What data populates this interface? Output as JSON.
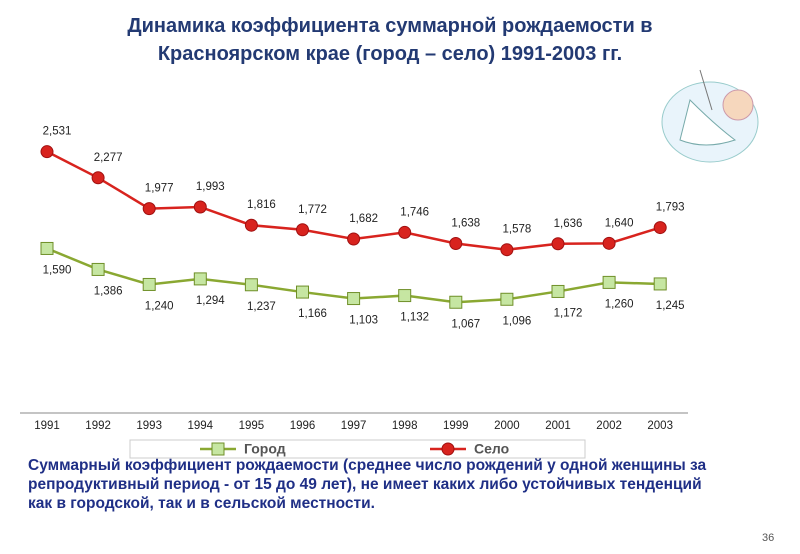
{
  "chart_data": {
    "type": "line",
    "title": "Динамика коэффициента суммарной рождаемости в Красноярском крае (город – село) 1991-2003 гг.",
    "categories": [
      "1991",
      "1992",
      "1993",
      "1994",
      "1995",
      "1996",
      "1997",
      "1998",
      "1999",
      "2000",
      "2001",
      "2002",
      "2003"
    ],
    "series": [
      {
        "name": "Город",
        "color": "#8aa832",
        "marker": "square",
        "values": [
          1.59,
          1.386,
          1.24,
          1.294,
          1.237,
          1.166,
          1.103,
          1.132,
          1.067,
          1.096,
          1.172,
          1.26,
          1.245
        ],
        "value_labels": [
          "1,590",
          "1,386",
          "1,240",
          "1,294",
          "1,237",
          "1,166",
          "1,103",
          "1,132",
          "1,067",
          "1,096",
          "1,172",
          "1,260",
          "1,245"
        ]
      },
      {
        "name": "Село",
        "color": "#d8231e",
        "marker": "circle",
        "values": [
          2.531,
          2.277,
          1.977,
          1.993,
          1.816,
          1.772,
          1.682,
          1.746,
          1.638,
          1.578,
          1.636,
          1.64,
          1.793
        ],
        "value_labels": [
          "2,531",
          "2,277",
          "1,977",
          "1,993",
          "1,816",
          "1,772",
          "1,682",
          "1,746",
          "1,638",
          "1,578",
          "1,636",
          "1,640",
          "1,793"
        ]
      }
    ],
    "ylim": [
      0,
      2.8
    ],
    "legend": "bottom",
    "note": "Суммарный коэффициент рождаемости (среднее число рождений у одной женщины за репродуктивный период - от 15 до 49 лет), не имеет каких либо устойчивых тенденций как в городской, так и в сельской местности.",
    "page_number": "36"
  }
}
